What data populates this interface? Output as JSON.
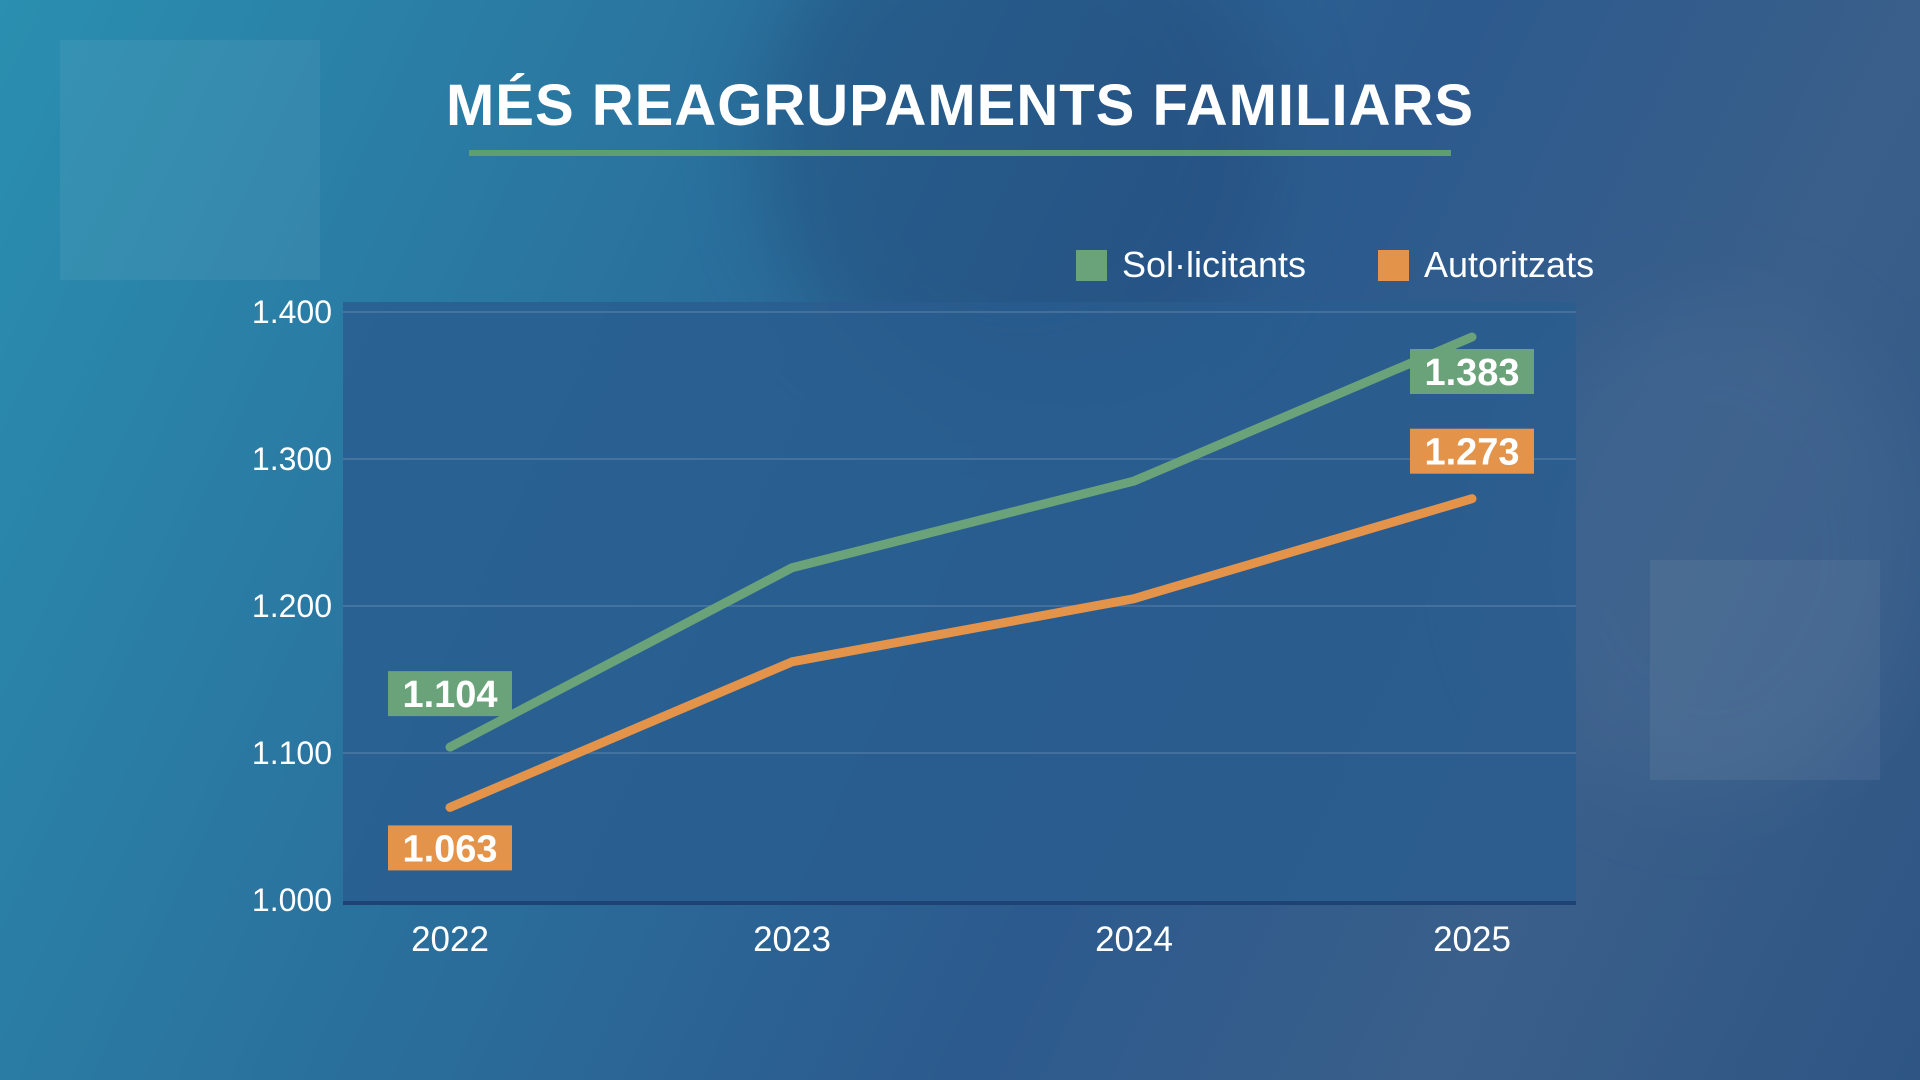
{
  "title": "MÉS REAGRUPAMENTS FAMILIARS",
  "colors": {
    "accent_rule": "#5e9e6f",
    "plot_area": "#2a5d8f"
  },
  "chart_data": {
    "type": "line",
    "title": "MÉS REAGRUPAMENTS FAMILIARS",
    "categories": [
      "2022",
      "2023",
      "2024",
      "2025"
    ],
    "ylim": [
      1000,
      1400
    ],
    "yticks": [
      "1.000",
      "1.100",
      "1.200",
      "1.300",
      "1.400"
    ],
    "ytick_values": [
      1000,
      1100,
      1200,
      1300,
      1400
    ],
    "grid": true,
    "legend_position": "top-right",
    "series": [
      {
        "name": "Sol·licitants",
        "color": "#6aa37a",
        "values": [
          1104,
          1226,
          1285,
          1383
        ],
        "labels": [
          "1.104",
          "",
          "",
          "1.383"
        ]
      },
      {
        "name": "Autoritzats",
        "color": "#e3934a",
        "values": [
          1063,
          1162,
          1205,
          1273
        ],
        "labels": [
          "1.063",
          "",
          "",
          "1.273"
        ]
      }
    ]
  }
}
